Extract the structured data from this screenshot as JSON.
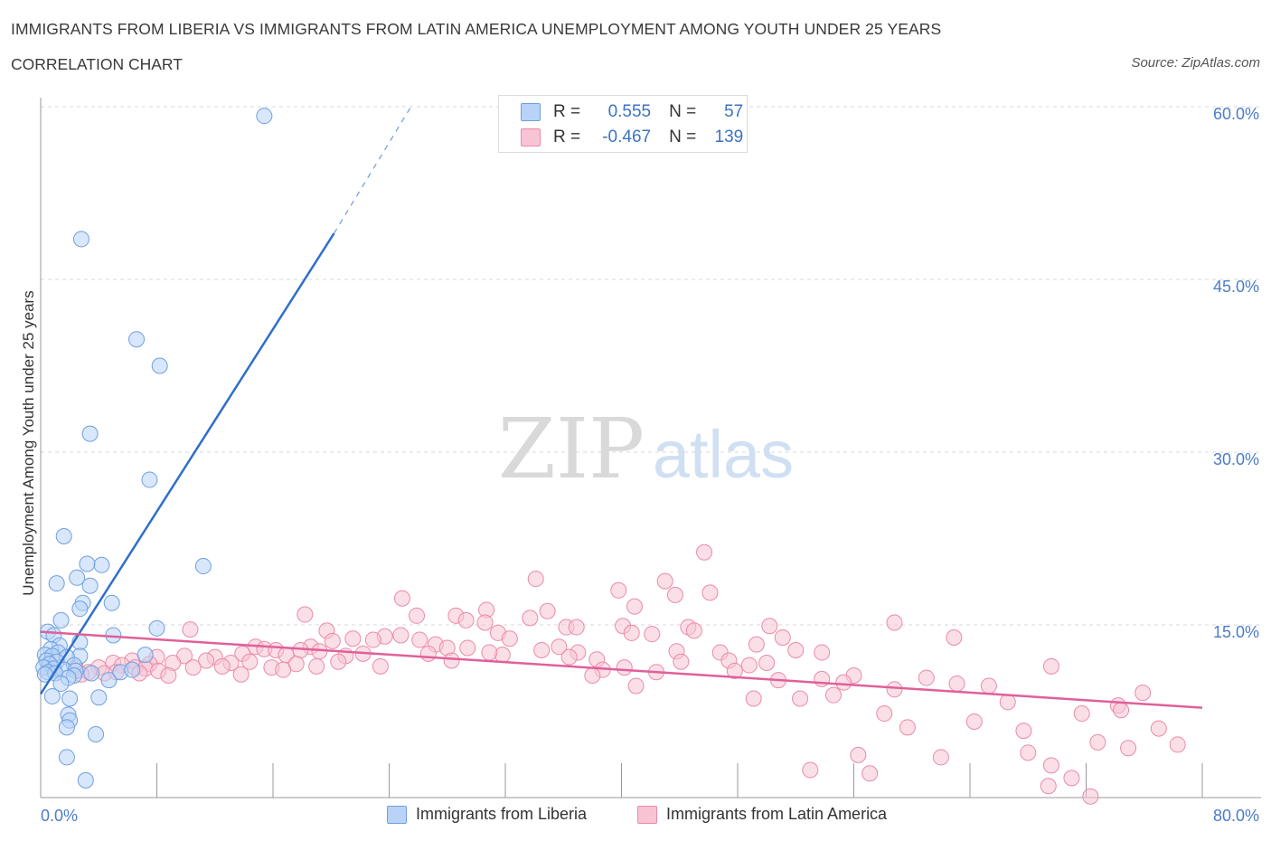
{
  "header": {
    "title": "IMMIGRANTS FROM LIBERIA VS IMMIGRANTS FROM LATIN AMERICA UNEMPLOYMENT AMONG YOUTH UNDER 25 YEARS",
    "subtitle": "CORRELATION CHART",
    "source": "Source: ZipAtlas.com"
  },
  "watermark": {
    "zip": "ZIP",
    "atlas": "atlas"
  },
  "legend": {
    "rows": [
      {
        "r_label": "R =",
        "r_value": "0.555",
        "n_label": "N =",
        "n_value": "57"
      },
      {
        "r_label": "R =",
        "r_value": "-0.467",
        "n_label": "N =",
        "n_value": "139"
      }
    ]
  },
  "colors": {
    "liberia_fill": "#b8d3f7",
    "liberia_stroke": "#6f9fe0",
    "liberia_line": "#2f6fca",
    "latam_fill": "#f8c4d4",
    "latam_stroke": "#eb8aa8",
    "latam_line": "#e0609a",
    "tick_label": "#4a7cc9",
    "grid": "#d8d8d8"
  },
  "chart_data": {
    "type": "scatter",
    "title": "IMMIGRANTS FROM LIBERIA VS IMMIGRANTS FROM LATIN AMERICA UNEMPLOYMENT AMONG YOUTH UNDER 25 YEARS",
    "subtitle": "CORRELATION CHART",
    "xlabel": "",
    "ylabel": "Unemployment Among Youth under 25 years",
    "xlim": [
      0,
      80
    ],
    "ylim": [
      0,
      60
    ],
    "x_tick_labels": [
      "0.0%",
      "80.0%"
    ],
    "y_ticks": [
      15,
      30,
      45,
      60
    ],
    "y_tick_labels": [
      "15.0%",
      "30.0%",
      "45.0%",
      "60.0%"
    ],
    "grid": true,
    "legend_position": "top-center",
    "series": [
      {
        "name": "Immigrants from Liberia",
        "R": 0.555,
        "N": 57,
        "trend": {
          "x": [
            0,
            20.2
          ],
          "y": [
            9.0,
            49.0
          ],
          "dashed_to": [
            25.5,
            60.0
          ]
        },
        "points": [
          [
            15.4,
            59.2
          ],
          [
            2.8,
            48.5
          ],
          [
            6.6,
            39.8
          ],
          [
            8.2,
            37.5
          ],
          [
            3.4,
            31.6
          ],
          [
            7.5,
            27.6
          ],
          [
            1.6,
            22.7
          ],
          [
            4.2,
            20.2
          ],
          [
            11.2,
            20.1
          ],
          [
            3.2,
            20.3
          ],
          [
            2.5,
            19.1
          ],
          [
            1.1,
            18.6
          ],
          [
            3.4,
            18.4
          ],
          [
            2.9,
            16.9
          ],
          [
            4.9,
            16.9
          ],
          [
            2.7,
            16.4
          ],
          [
            1.4,
            15.4
          ],
          [
            0.5,
            14.4
          ],
          [
            5.0,
            14.1
          ],
          [
            8.0,
            14.7
          ],
          [
            0.9,
            14.1
          ],
          [
            2.7,
            13.5
          ],
          [
            1.3,
            13.2
          ],
          [
            0.7,
            12.9
          ],
          [
            1.2,
            12.6
          ],
          [
            0.3,
            12.4
          ],
          [
            0.8,
            12.3
          ],
          [
            2.7,
            12.3
          ],
          [
            1.8,
            12.2
          ],
          [
            7.2,
            12.4
          ],
          [
            0.4,
            11.9
          ],
          [
            1.1,
            11.8
          ],
          [
            0.6,
            11.6
          ],
          [
            2.3,
            11.5
          ],
          [
            0.2,
            11.3
          ],
          [
            0.9,
            11.2
          ],
          [
            1.6,
            11.1
          ],
          [
            2.4,
            11.0
          ],
          [
            0.5,
            10.9
          ],
          [
            1.0,
            10.8
          ],
          [
            0.3,
            10.7
          ],
          [
            2.3,
            10.6
          ],
          [
            3.5,
            10.8
          ],
          [
            4.7,
            10.2
          ],
          [
            1.9,
            10.4
          ],
          [
            5.5,
            10.9
          ],
          [
            6.3,
            11.1
          ],
          [
            1.4,
            9.9
          ],
          [
            4.0,
            8.7
          ],
          [
            0.8,
            8.8
          ],
          [
            2.0,
            8.6
          ],
          [
            1.9,
            7.2
          ],
          [
            2.0,
            6.7
          ],
          [
            1.8,
            6.1
          ],
          [
            3.8,
            5.5
          ],
          [
            1.8,
            3.5
          ],
          [
            3.1,
            1.5
          ]
        ]
      },
      {
        "name": "Immigrants from Latin America",
        "R": -0.467,
        "N": 139,
        "trend": {
          "x": [
            0,
            80
          ],
          "y": [
            14.4,
            7.8
          ]
        },
        "points": [
          [
            45.7,
            21.3
          ],
          [
            34.1,
            19.0
          ],
          [
            43.0,
            18.8
          ],
          [
            39.8,
            18.0
          ],
          [
            46.1,
            17.8
          ],
          [
            43.7,
            17.6
          ],
          [
            24.9,
            17.3
          ],
          [
            40.9,
            16.6
          ],
          [
            30.7,
            16.3
          ],
          [
            34.9,
            16.2
          ],
          [
            18.2,
            15.9
          ],
          [
            25.9,
            15.8
          ],
          [
            28.6,
            15.8
          ],
          [
            29.3,
            15.4
          ],
          [
            30.6,
            15.2
          ],
          [
            33.7,
            15.6
          ],
          [
            36.2,
            14.8
          ],
          [
            36.9,
            14.8
          ],
          [
            40.1,
            14.9
          ],
          [
            44.6,
            14.8
          ],
          [
            45.0,
            14.5
          ],
          [
            50.2,
            14.9
          ],
          [
            58.8,
            15.2
          ],
          [
            10.3,
            14.6
          ],
          [
            19.7,
            14.5
          ],
          [
            31.5,
            14.3
          ],
          [
            40.7,
            14.3
          ],
          [
            42.1,
            14.2
          ],
          [
            62.9,
            13.9
          ],
          [
            51.1,
            13.9
          ],
          [
            24.8,
            14.1
          ],
          [
            23.7,
            14.0
          ],
          [
            22.9,
            13.7
          ],
          [
            21.5,
            13.8
          ],
          [
            20.1,
            13.6
          ],
          [
            26.1,
            13.7
          ],
          [
            32.3,
            13.8
          ],
          [
            35.7,
            13.1
          ],
          [
            27.2,
            13.3
          ],
          [
            28.0,
            13.0
          ],
          [
            14.8,
            13.1
          ],
          [
            15.4,
            12.9
          ],
          [
            16.2,
            12.8
          ],
          [
            18.6,
            13.1
          ],
          [
            22.2,
            12.5
          ],
          [
            29.4,
            13.0
          ],
          [
            31.8,
            12.4
          ],
          [
            17.9,
            12.8
          ],
          [
            19.2,
            12.7
          ],
          [
            49.3,
            13.3
          ],
          [
            52.0,
            12.8
          ],
          [
            53.8,
            12.6
          ],
          [
            34.5,
            12.8
          ],
          [
            37.0,
            12.6
          ],
          [
            43.8,
            12.7
          ],
          [
            46.8,
            12.6
          ],
          [
            13.9,
            12.5
          ],
          [
            16.9,
            12.4
          ],
          [
            21.0,
            12.3
          ],
          [
            26.7,
            12.5
          ],
          [
            30.9,
            12.6
          ],
          [
            36.4,
            12.2
          ],
          [
            9.9,
            12.3
          ],
          [
            12.0,
            12.2
          ],
          [
            8.0,
            12.2
          ],
          [
            11.4,
            11.9
          ],
          [
            13.1,
            11.7
          ],
          [
            14.4,
            11.8
          ],
          [
            17.6,
            11.6
          ],
          [
            20.5,
            11.8
          ],
          [
            28.3,
            11.9
          ],
          [
            38.3,
            12.0
          ],
          [
            44.1,
            11.8
          ],
          [
            47.4,
            11.9
          ],
          [
            48.8,
            11.5
          ],
          [
            6.3,
            11.9
          ],
          [
            7.5,
            11.6
          ],
          [
            9.1,
            11.7
          ],
          [
            5.0,
            11.7
          ],
          [
            4.0,
            11.3
          ],
          [
            5.6,
            11.5
          ],
          [
            6.5,
            11.3
          ],
          [
            7.2,
            11.2
          ],
          [
            8.1,
            11.0
          ],
          [
            10.5,
            11.3
          ],
          [
            12.5,
            11.4
          ],
          [
            15.9,
            11.3
          ],
          [
            16.7,
            11.1
          ],
          [
            19.0,
            11.4
          ],
          [
            23.4,
            11.4
          ],
          [
            38.7,
            11.1
          ],
          [
            40.2,
            11.3
          ],
          [
            47.8,
            11.0
          ],
          [
            50.0,
            11.7
          ],
          [
            4.4,
            10.8
          ],
          [
            5.2,
            10.9
          ],
          [
            6.8,
            10.8
          ],
          [
            8.8,
            10.6
          ],
          [
            3.3,
            10.9
          ],
          [
            2.4,
            11.3
          ],
          [
            2.8,
            10.7
          ],
          [
            13.8,
            10.7
          ],
          [
            38.0,
            10.6
          ],
          [
            42.4,
            10.9
          ],
          [
            56.0,
            10.6
          ],
          [
            69.6,
            11.4
          ],
          [
            50.8,
            10.2
          ],
          [
            53.8,
            10.3
          ],
          [
            55.3,
            10.0
          ],
          [
            61.0,
            10.4
          ],
          [
            63.1,
            9.9
          ],
          [
            65.3,
            9.7
          ],
          [
            41.0,
            9.7
          ],
          [
            58.8,
            9.4
          ],
          [
            75.9,
            9.1
          ],
          [
            54.6,
            8.9
          ],
          [
            52.3,
            8.6
          ],
          [
            49.1,
            8.6
          ],
          [
            66.6,
            8.3
          ],
          [
            74.2,
            8.0
          ],
          [
            58.1,
            7.3
          ],
          [
            71.7,
            7.3
          ],
          [
            74.4,
            7.6
          ],
          [
            64.3,
            6.6
          ],
          [
            67.7,
            5.8
          ],
          [
            77.0,
            6.0
          ],
          [
            59.7,
            6.1
          ],
          [
            72.8,
            4.8
          ],
          [
            78.3,
            4.6
          ],
          [
            74.9,
            4.3
          ],
          [
            56.3,
            3.7
          ],
          [
            62.0,
            3.5
          ],
          [
            68.0,
            3.9
          ],
          [
            69.6,
            2.8
          ],
          [
            53.0,
            2.4
          ],
          [
            57.1,
            2.1
          ],
          [
            71.0,
            1.7
          ],
          [
            69.4,
            1.0
          ],
          [
            72.3,
            0.1
          ]
        ]
      }
    ]
  },
  "bottom_legend": {
    "liberia_label": "Immigrants from Liberia",
    "latam_label": "Immigrants from Latin America"
  }
}
